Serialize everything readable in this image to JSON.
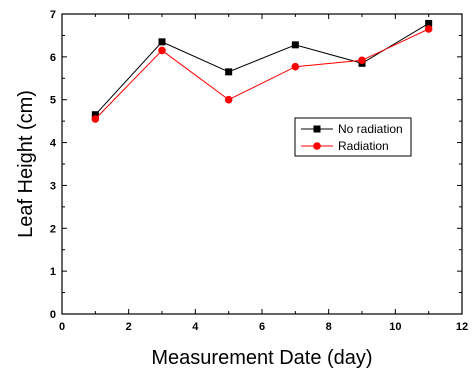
{
  "chart_data": {
    "type": "line",
    "title": "",
    "xlabel": "Measurement Date (day)",
    "ylabel": "Leaf Height (cm)",
    "xlim": [
      0,
      12
    ],
    "ylim": [
      0,
      7
    ],
    "xticks": [
      0,
      2,
      4,
      6,
      8,
      10,
      12
    ],
    "yticks": [
      0,
      1,
      2,
      3,
      4,
      5,
      6,
      7
    ],
    "grid": false,
    "legend_position": "right-center",
    "x": [
      1,
      3,
      5,
      7,
      9,
      11
    ],
    "series": [
      {
        "name": "No radiation",
        "color": "#000000",
        "marker": "square",
        "values": [
          4.65,
          6.35,
          5.65,
          6.28,
          5.85,
          6.78
        ]
      },
      {
        "name": "Radiation",
        "color": "#ff0000",
        "marker": "circle",
        "values": [
          4.55,
          6.15,
          5.0,
          5.77,
          5.92,
          6.65
        ]
      }
    ]
  }
}
